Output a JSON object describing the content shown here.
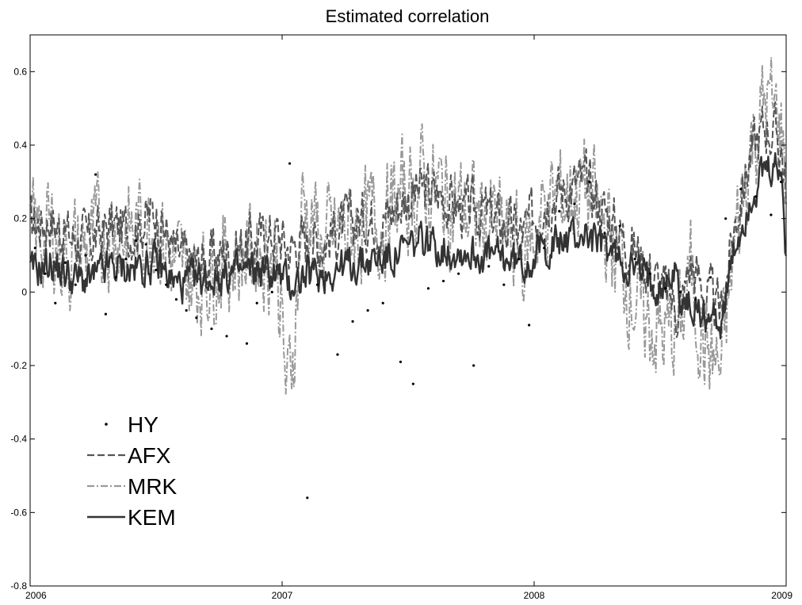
{
  "chart_data": {
    "type": "line",
    "title": "Estimated correlation",
    "xlabel": "",
    "ylabel": "",
    "xlim": [
      2006,
      2009
    ],
    "ylim": [
      -0.8,
      0.7
    ],
    "x_ticks": [
      "2006",
      "2007",
      "2008",
      "2009"
    ],
    "y_ticks": [
      "-0.8",
      "-0.6",
      "-0.4",
      "-0.2",
      "0",
      "0.2",
      "0.4",
      "0.6"
    ],
    "grid": false,
    "legend_position": "bottom-left",
    "series": [
      {
        "name": "HY",
        "style": "dots",
        "color": "#000000",
        "points": [
          [
            2006.02,
            0.12
          ],
          [
            2006.06,
            0.05
          ],
          [
            2006.1,
            -0.03
          ],
          [
            2006.14,
            0.08
          ],
          [
            2006.18,
            0.02
          ],
          [
            2006.22,
            0.1
          ],
          [
            2006.26,
            0.32
          ],
          [
            2006.3,
            -0.06
          ],
          [
            2006.34,
            0.04
          ],
          [
            2006.38,
            0.09
          ],
          [
            2006.42,
            0.14
          ],
          [
            2006.46,
            0.13
          ],
          [
            2006.5,
            0.06
          ],
          [
            2006.54,
            0.02
          ],
          [
            2006.58,
            -0.02
          ],
          [
            2006.62,
            -0.05
          ],
          [
            2006.66,
            -0.07
          ],
          [
            2006.72,
            -0.1
          ],
          [
            2006.78,
            -0.12
          ],
          [
            2006.86,
            -0.14
          ],
          [
            2006.9,
            -0.03
          ],
          [
            2006.96,
            0.0
          ],
          [
            2007.03,
            0.35
          ],
          [
            2007.1,
            -0.56
          ],
          [
            2007.14,
            0.02
          ],
          [
            2007.22,
            -0.17
          ],
          [
            2007.28,
            -0.08
          ],
          [
            2007.34,
            -0.05
          ],
          [
            2007.4,
            -0.03
          ],
          [
            2007.47,
            -0.19
          ],
          [
            2007.52,
            -0.25
          ],
          [
            2007.58,
            0.01
          ],
          [
            2007.64,
            0.03
          ],
          [
            2007.7,
            0.05
          ],
          [
            2007.76,
            -0.2
          ],
          [
            2007.82,
            0.07
          ],
          [
            2007.88,
            0.02
          ],
          [
            2007.94,
            0.09
          ],
          [
            2007.98,
            -0.09
          ],
          [
            2008.04,
            0.12
          ],
          [
            2008.1,
            0.22
          ],
          [
            2008.16,
            0.24
          ],
          [
            2008.22,
            0.3
          ],
          [
            2008.28,
            0.16
          ],
          [
            2008.34,
            0.18
          ],
          [
            2008.4,
            0.09
          ],
          [
            2008.46,
            0.05
          ],
          [
            2008.52,
            0.01
          ],
          [
            2008.58,
            0.0
          ],
          [
            2008.64,
            -0.02
          ],
          [
            2008.7,
            0.04
          ],
          [
            2008.76,
            0.2
          ],
          [
            2008.82,
            0.28
          ],
          [
            2008.88,
            0.26
          ],
          [
            2008.94,
            0.21
          ],
          [
            2008.98,
            0.3
          ]
        ]
      },
      {
        "name": "AFX",
        "style": "dashed",
        "color": "#555555",
        "anchors": [
          [
            2006.0,
            0.18
          ],
          [
            2006.08,
            0.2
          ],
          [
            2006.16,
            0.15
          ],
          [
            2006.24,
            0.14
          ],
          [
            2006.32,
            0.18
          ],
          [
            2006.4,
            0.17
          ],
          [
            2006.5,
            0.22
          ],
          [
            2006.58,
            0.1
          ],
          [
            2006.66,
            0.08
          ],
          [
            2006.74,
            0.1
          ],
          [
            2006.82,
            0.12
          ],
          [
            2006.9,
            0.14
          ],
          [
            2006.98,
            0.16
          ],
          [
            2007.03,
            0.12
          ],
          [
            2007.08,
            0.14
          ],
          [
            2007.16,
            0.14
          ],
          [
            2007.24,
            0.18
          ],
          [
            2007.32,
            0.2
          ],
          [
            2007.4,
            0.2
          ],
          [
            2007.48,
            0.25
          ],
          [
            2007.56,
            0.28
          ],
          [
            2007.64,
            0.26
          ],
          [
            2007.72,
            0.22
          ],
          [
            2007.8,
            0.22
          ],
          [
            2007.88,
            0.18
          ],
          [
            2007.96,
            0.16
          ],
          [
            2008.04,
            0.26
          ],
          [
            2008.12,
            0.28
          ],
          [
            2008.2,
            0.3
          ],
          [
            2008.28,
            0.22
          ],
          [
            2008.36,
            0.15
          ],
          [
            2008.44,
            0.08
          ],
          [
            2008.52,
            0.0
          ],
          [
            2008.58,
            -0.05
          ],
          [
            2008.62,
            0.08
          ],
          [
            2008.68,
            0.0
          ],
          [
            2008.74,
            -0.06
          ],
          [
            2008.8,
            0.2
          ],
          [
            2008.86,
            0.38
          ],
          [
            2008.92,
            0.46
          ],
          [
            2008.98,
            0.4
          ],
          [
            2009.0,
            0.28
          ]
        ],
        "amplitude": 0.09
      },
      {
        "name": "MRK",
        "style": "dash-dot",
        "color": "#999999",
        "anchors": [
          [
            2006.0,
            0.14
          ],
          [
            2006.08,
            0.16
          ],
          [
            2006.16,
            0.1
          ],
          [
            2006.24,
            0.12
          ],
          [
            2006.32,
            0.18
          ],
          [
            2006.4,
            0.16
          ],
          [
            2006.5,
            0.2
          ],
          [
            2006.58,
            0.06
          ],
          [
            2006.66,
            0.04
          ],
          [
            2006.74,
            0.08
          ],
          [
            2006.82,
            0.1
          ],
          [
            2006.9,
            0.12
          ],
          [
            2006.98,
            0.1
          ],
          [
            2007.02,
            -0.3
          ],
          [
            2007.05,
            -0.1
          ],
          [
            2007.08,
            0.25
          ],
          [
            2007.16,
            0.12
          ],
          [
            2007.24,
            0.16
          ],
          [
            2007.32,
            0.18
          ],
          [
            2007.4,
            0.2
          ],
          [
            2007.48,
            0.26
          ],
          [
            2007.56,
            0.3
          ],
          [
            2007.64,
            0.26
          ],
          [
            2007.72,
            0.22
          ],
          [
            2007.8,
            0.2
          ],
          [
            2007.88,
            0.16
          ],
          [
            2007.96,
            0.1
          ],
          [
            2008.04,
            0.22
          ],
          [
            2008.12,
            0.26
          ],
          [
            2008.2,
            0.28
          ],
          [
            2008.28,
            0.18
          ],
          [
            2008.36,
            0.05
          ],
          [
            2008.44,
            -0.08
          ],
          [
            2008.52,
            -0.12
          ],
          [
            2008.58,
            -0.1
          ],
          [
            2008.62,
            0.05
          ],
          [
            2008.68,
            -0.15
          ],
          [
            2008.74,
            -0.22
          ],
          [
            2008.8,
            0.15
          ],
          [
            2008.86,
            0.4
          ],
          [
            2008.92,
            0.52
          ],
          [
            2008.98,
            0.45
          ],
          [
            2009.0,
            0.3
          ]
        ],
        "amplitude": 0.17
      },
      {
        "name": "KEM",
        "style": "solid",
        "color": "#333333",
        "anchors": [
          [
            2006.0,
            0.05
          ],
          [
            2006.08,
            0.08
          ],
          [
            2006.16,
            0.04
          ],
          [
            2006.24,
            0.03
          ],
          [
            2006.32,
            0.07
          ],
          [
            2006.4,
            0.06
          ],
          [
            2006.5,
            0.08
          ],
          [
            2006.58,
            0.02
          ],
          [
            2006.66,
            0.03
          ],
          [
            2006.74,
            0.04
          ],
          [
            2006.82,
            0.05
          ],
          [
            2006.9,
            0.06
          ],
          [
            2006.98,
            0.05
          ],
          [
            2007.03,
            0.02
          ],
          [
            2007.08,
            0.04
          ],
          [
            2007.16,
            0.05
          ],
          [
            2007.24,
            0.07
          ],
          [
            2007.32,
            0.08
          ],
          [
            2007.4,
            0.09
          ],
          [
            2007.48,
            0.11
          ],
          [
            2007.56,
            0.14
          ],
          [
            2007.64,
            0.12
          ],
          [
            2007.72,
            0.11
          ],
          [
            2007.8,
            0.1
          ],
          [
            2007.88,
            0.09
          ],
          [
            2007.96,
            0.08
          ],
          [
            2008.04,
            0.12
          ],
          [
            2008.12,
            0.14
          ],
          [
            2008.2,
            0.16
          ],
          [
            2008.28,
            0.12
          ],
          [
            2008.36,
            0.08
          ],
          [
            2008.44,
            0.04
          ],
          [
            2008.52,
            0.02
          ],
          [
            2008.56,
            0.06
          ],
          [
            2008.58,
            -0.02
          ],
          [
            2008.62,
            -0.04
          ],
          [
            2008.68,
            -0.06
          ],
          [
            2008.74,
            -0.08
          ],
          [
            2008.8,
            0.12
          ],
          [
            2008.86,
            0.26
          ],
          [
            2008.92,
            0.32
          ],
          [
            2008.98,
            0.33
          ],
          [
            2009.0,
            0.1
          ]
        ],
        "amplitude": 0.06
      }
    ]
  }
}
